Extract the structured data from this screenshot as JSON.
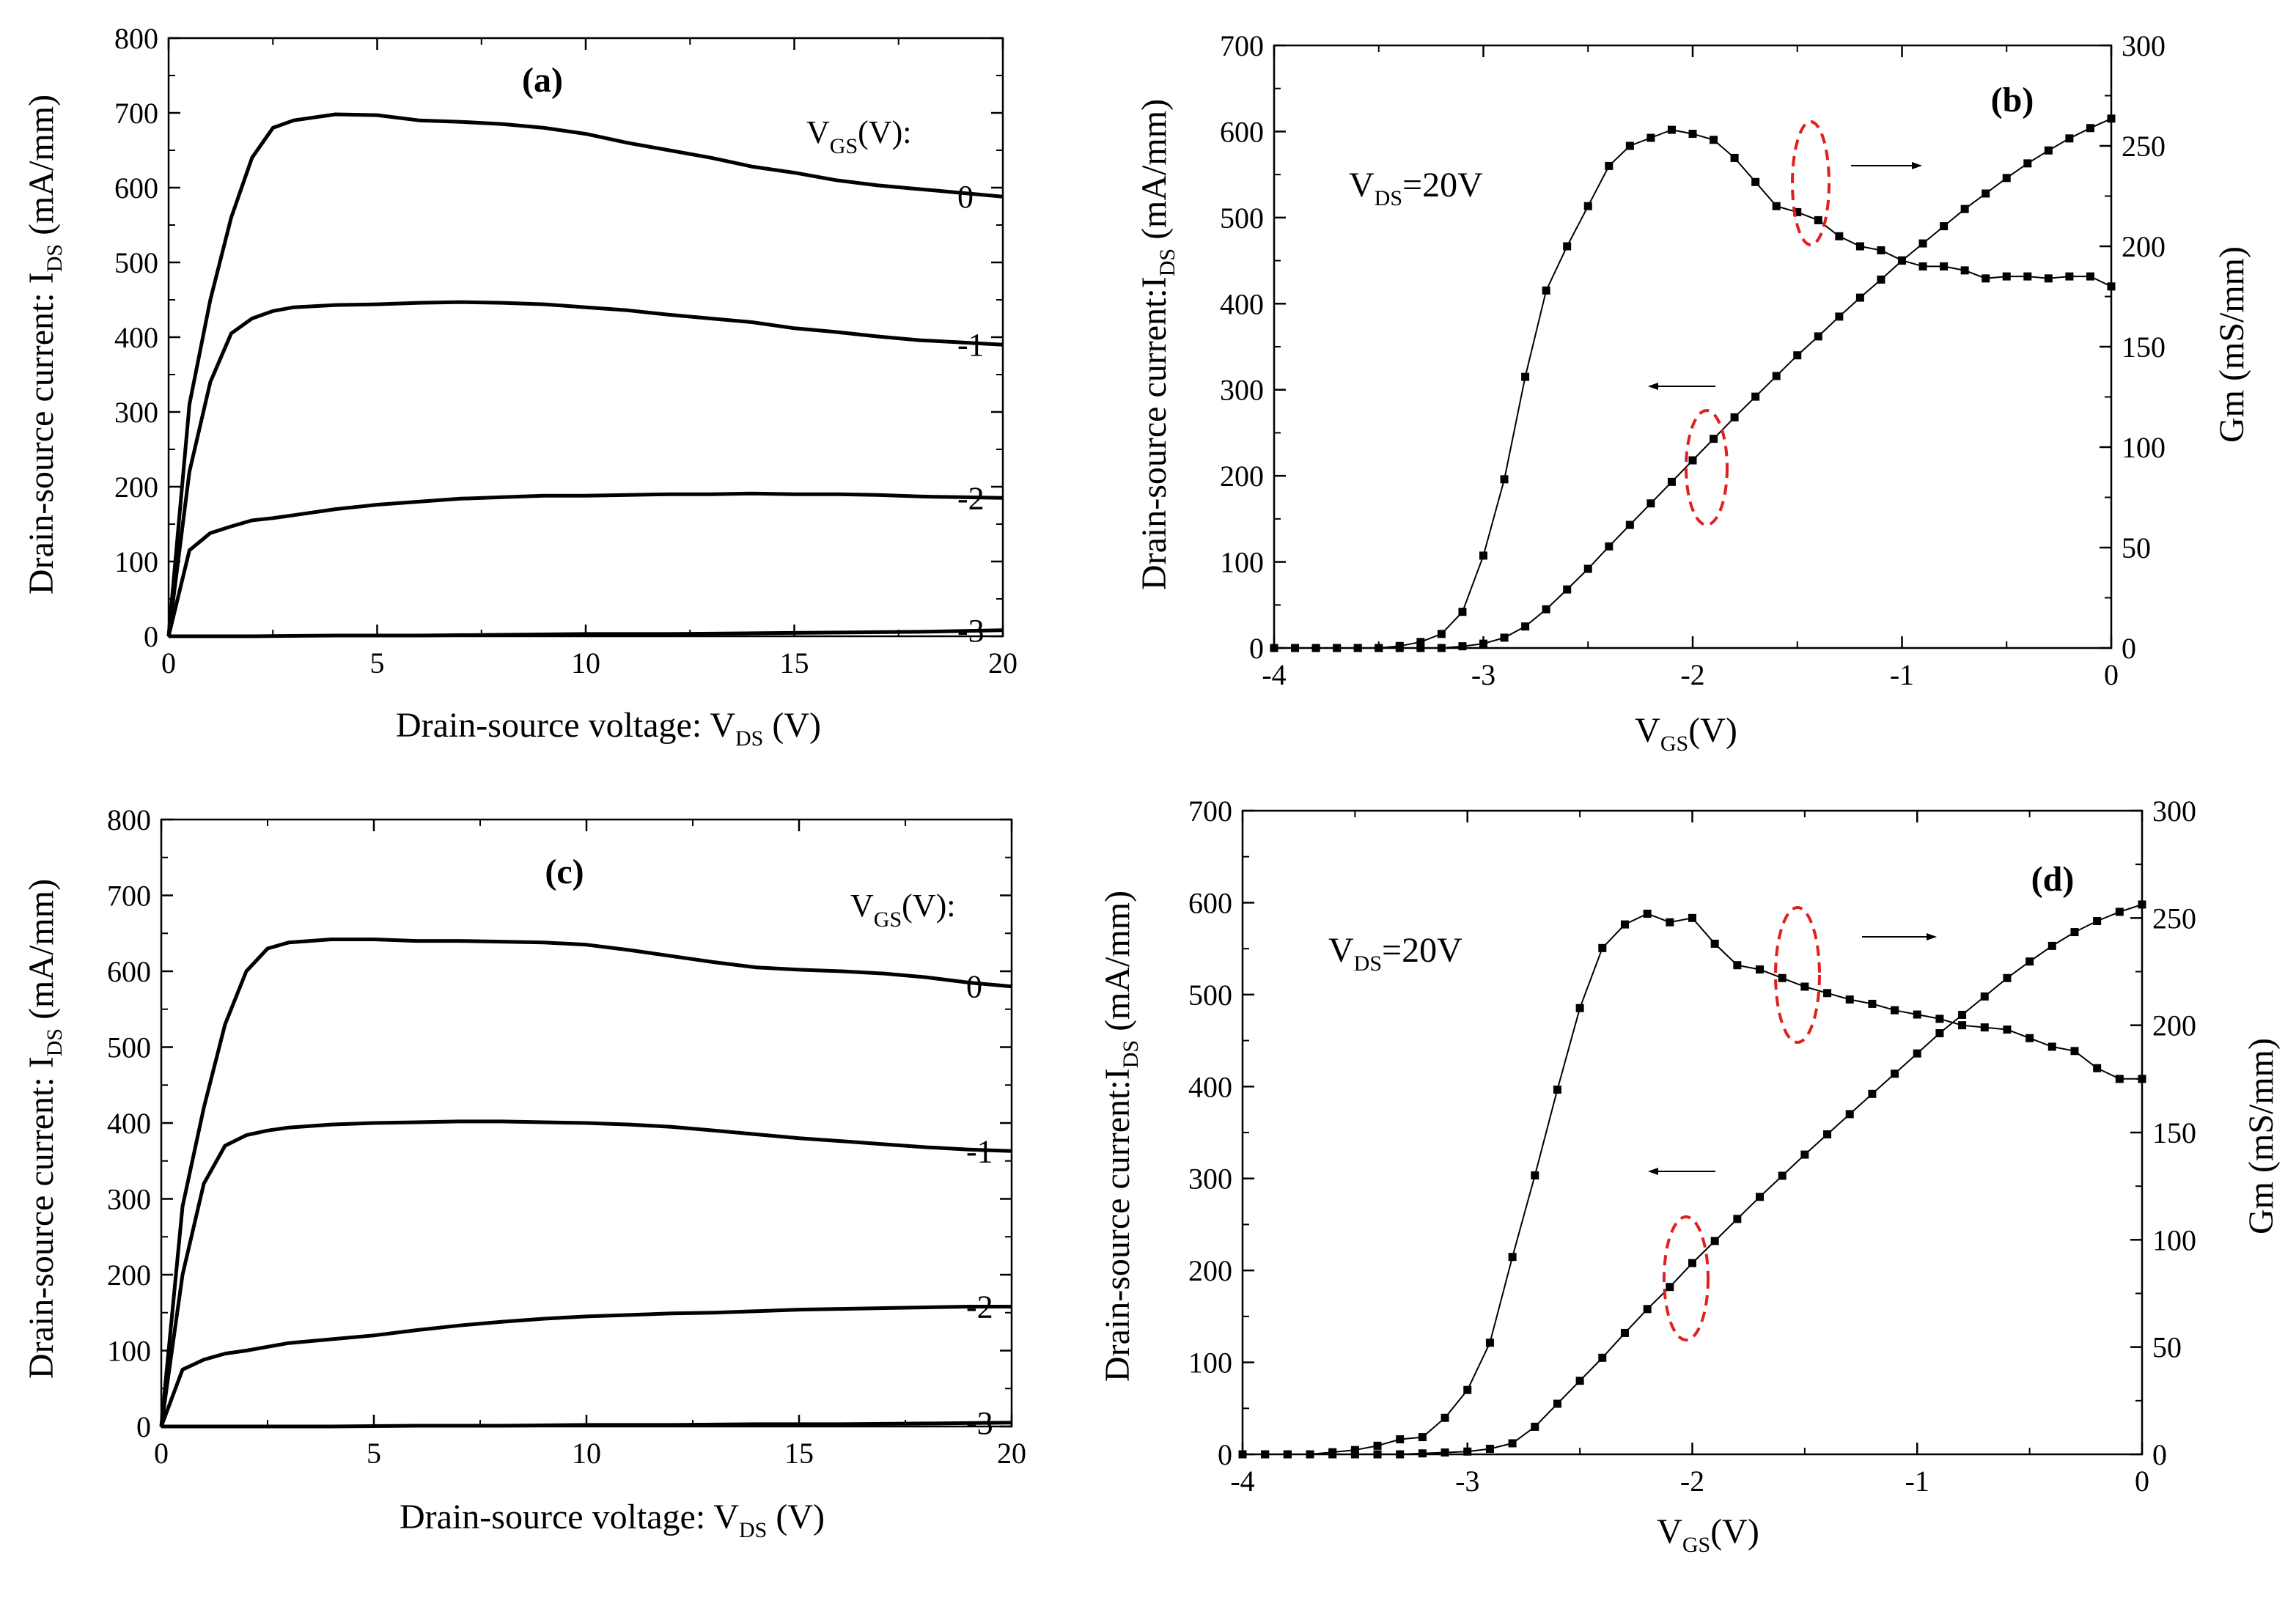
{
  "panels": [
    {
      "id": "a",
      "panel_label": "(a)",
      "ylabel_prefix": "Drain-source current: I",
      "ylabel_sub": "DS",
      "ylabel_suffix": " (mA/mm)",
      "xlabel_prefix": "Drain-source voltage: V",
      "xlabel_sub": "DS",
      "xlabel_suffix": " (V)",
      "legend_head_main": "V",
      "legend_head_sub": "GS",
      "legend_head_tail": "(V):"
    },
    {
      "id": "b",
      "panel_label": "(b)",
      "ylabel_prefix": "Drain-source current:I",
      "ylabel_sub": "DS",
      "ylabel_suffix": " (mA/mm)",
      "y2label": "Gm (mS/mm)",
      "xlabel_main": "V",
      "xlabel_sub": "GS",
      "xlabel_tail": "(V)",
      "annotation_main": "V",
      "annotation_sub": "DS",
      "annotation_tail": "=20V"
    },
    {
      "id": "c",
      "panel_label": "(c)",
      "ylabel_prefix": "Drain-source current: I",
      "ylabel_sub": "DS",
      "ylabel_suffix": " (mA/mm)",
      "xlabel_prefix": "Drain-source voltage: V",
      "xlabel_sub": "DS",
      "xlabel_suffix": " (V)",
      "legend_head_main": "V",
      "legend_head_sub": "GS",
      "legend_head_tail": "(V):"
    },
    {
      "id": "d",
      "panel_label": "(d)",
      "ylabel_prefix": "Drain-source current:I",
      "ylabel_sub": "DS",
      "ylabel_suffix": " (mA/mm)",
      "y2label": "Gm (mS/mm)",
      "xlabel_main": "V",
      "xlabel_sub": "GS",
      "xlabel_tail": "(V)",
      "annotation_main": "V",
      "annotation_sub": "DS",
      "annotation_tail": "=20V"
    }
  ],
  "chart_data": [
    {
      "panel": "a",
      "type": "line",
      "xlim": [
        0,
        20
      ],
      "ylim": [
        0,
        800
      ],
      "x_ticks": [
        0,
        5,
        10,
        15,
        20
      ],
      "y_ticks": [
        0,
        100,
        200,
        300,
        400,
        500,
        600,
        700,
        800
      ],
      "grid": false,
      "color": "#000000",
      "series": [
        {
          "name": "0",
          "x": [
            0,
            0.5,
            1,
            1.5,
            2,
            2.5,
            3,
            4,
            5,
            6,
            7,
            8,
            9,
            10,
            11,
            12,
            13,
            14,
            15,
            16,
            17,
            18,
            19,
            20
          ],
          "y": [
            0,
            310,
            450,
            560,
            640,
            680,
            690,
            698,
            697,
            690,
            688,
            685,
            680,
            672,
            660,
            650,
            640,
            628,
            620,
            610,
            603,
            598,
            593,
            588
          ]
        },
        {
          "name": "-1",
          "x": [
            0,
            0.5,
            1,
            1.5,
            2,
            2.5,
            3,
            4,
            5,
            6,
            7,
            8,
            9,
            10,
            11,
            12,
            13,
            14,
            15,
            16,
            17,
            18,
            19,
            20
          ],
          "y": [
            0,
            220,
            340,
            405,
            425,
            435,
            440,
            443,
            444,
            446,
            447,
            446,
            444,
            440,
            436,
            430,
            425,
            420,
            412,
            407,
            401,
            396,
            393,
            390
          ]
        },
        {
          "name": "-2",
          "x": [
            0,
            0.5,
            1,
            1.5,
            2,
            2.5,
            3,
            4,
            5,
            6,
            7,
            8,
            9,
            10,
            11,
            12,
            13,
            14,
            15,
            16,
            17,
            18,
            19,
            20
          ],
          "y": [
            0,
            115,
            138,
            147,
            155,
            158,
            162,
            170,
            176,
            180,
            184,
            186,
            188,
            188,
            189,
            190,
            190,
            191,
            190,
            190,
            189,
            187,
            186,
            185
          ]
        },
        {
          "name": "-3",
          "x": [
            0,
            1,
            2,
            4,
            6,
            8,
            10,
            12,
            14,
            16,
            18,
            20
          ],
          "y": [
            0,
            0,
            0,
            1,
            1,
            2,
            3,
            3,
            4,
            5,
            6,
            8
          ]
        }
      ]
    },
    {
      "panel": "b",
      "type": "line",
      "xlim": [
        -4,
        0
      ],
      "ylim": [
        0,
        700
      ],
      "y2lim": [
        0,
        300
      ],
      "x_ticks": [
        -4,
        -3,
        -2,
        -1,
        0
      ],
      "y_ticks": [
        0,
        100,
        200,
        300,
        400,
        500,
        600,
        700
      ],
      "y2_ticks": [
        0,
        50,
        100,
        150,
        200,
        250,
        300
      ],
      "grid": false,
      "series": [
        {
          "axis": "left",
          "x": [
            -4.0,
            -3.9,
            -3.8,
            -3.7,
            -3.6,
            -3.5,
            -3.4,
            -3.3,
            -3.2,
            -3.1,
            -3.0,
            -2.9,
            -2.8,
            -2.7,
            -2.6,
            -2.5,
            -2.4,
            -2.3,
            -2.2,
            -2.1,
            -2.0,
            -1.9,
            -1.8,
            -1.7,
            -1.6,
            -1.5,
            -1.4,
            -1.3,
            -1.2,
            -1.1,
            -1.0,
            -0.9,
            -0.8,
            -0.7,
            -0.6,
            -0.5,
            -0.4,
            -0.3,
            -0.2,
            -0.1,
            0.0
          ],
          "y": [
            0,
            0,
            0,
            0,
            0,
            0,
            0,
            0,
            0,
            2,
            5,
            12,
            25,
            45,
            68,
            92,
            118,
            143,
            168,
            193,
            218,
            243,
            268,
            292,
            316,
            340,
            362,
            385,
            407,
            428,
            450,
            470,
            490,
            510,
            528,
            546,
            563,
            578,
            592,
            604,
            615
          ]
        },
        {
          "axis": "right",
          "x": [
            -4.0,
            -3.9,
            -3.8,
            -3.7,
            -3.6,
            -3.5,
            -3.4,
            -3.3,
            -3.2,
            -3.1,
            -3.0,
            -2.9,
            -2.8,
            -2.7,
            -2.6,
            -2.5,
            -2.4,
            -2.3,
            -2.2,
            -2.1,
            -2.0,
            -1.9,
            -1.8,
            -1.7,
            -1.6,
            -1.5,
            -1.4,
            -1.3,
            -1.2,
            -1.1,
            -1.0,
            -0.9,
            -0.8,
            -0.7,
            -0.6,
            -0.5,
            -0.4,
            -0.3,
            -0.2,
            -0.1,
            0.0
          ],
          "y": [
            0,
            0,
            0,
            0,
            0,
            0,
            1,
            3,
            7,
            18,
            46,
            84,
            135,
            178,
            200,
            220,
            240,
            250,
            254,
            258,
            256,
            253,
            244,
            232,
            220,
            217,
            213,
            205,
            200,
            198,
            193,
            190,
            190,
            188,
            184,
            185,
            185,
            184,
            185,
            185,
            180
          ]
        }
      ]
    },
    {
      "panel": "c",
      "type": "line",
      "xlim": [
        0,
        20
      ],
      "ylim": [
        0,
        800
      ],
      "x_ticks": [
        0,
        5,
        10,
        15,
        20
      ],
      "y_ticks": [
        0,
        100,
        200,
        300,
        400,
        500,
        600,
        700,
        800
      ],
      "grid": false,
      "color": "#000000",
      "series": [
        {
          "name": "0",
          "x": [
            0,
            0.5,
            1,
            1.5,
            2,
            2.5,
            3,
            4,
            5,
            6,
            7,
            8,
            9,
            10,
            11,
            12,
            13,
            14,
            15,
            16,
            17,
            18,
            19,
            20
          ],
          "y": [
            0,
            290,
            420,
            530,
            600,
            630,
            638,
            642,
            642,
            640,
            640,
            639,
            638,
            635,
            628,
            620,
            612,
            605,
            602,
            600,
            597,
            592,
            585,
            580
          ]
        },
        {
          "name": "-1",
          "x": [
            0,
            0.5,
            1,
            1.5,
            2,
            2.5,
            3,
            4,
            5,
            6,
            7,
            8,
            9,
            10,
            11,
            12,
            13,
            14,
            15,
            16,
            17,
            18,
            19,
            20
          ],
          "y": [
            0,
            200,
            320,
            370,
            384,
            390,
            394,
            398,
            400,
            401,
            402,
            402,
            401,
            400,
            398,
            395,
            390,
            385,
            380,
            376,
            372,
            368,
            365,
            363
          ]
        },
        {
          "name": "-2",
          "x": [
            0,
            0.5,
            1,
            1.5,
            2,
            2.5,
            3,
            4,
            5,
            6,
            7,
            8,
            9,
            10,
            11,
            12,
            13,
            14,
            15,
            16,
            17,
            18,
            19,
            20
          ],
          "y": [
            0,
            75,
            88,
            96,
            100,
            105,
            110,
            115,
            120,
            127,
            133,
            138,
            142,
            145,
            147,
            149,
            150,
            152,
            154,
            155,
            156,
            157,
            158,
            158
          ]
        },
        {
          "name": "-3",
          "x": [
            0,
            1,
            2,
            4,
            6,
            8,
            10,
            12,
            14,
            16,
            18,
            20
          ],
          "y": [
            0,
            0,
            0,
            0,
            1,
            1,
            2,
            2,
            3,
            3,
            4,
            5
          ]
        }
      ]
    },
    {
      "panel": "d",
      "type": "line",
      "xlim": [
        -4,
        0
      ],
      "ylim": [
        0,
        700
      ],
      "y2lim": [
        0,
        300
      ],
      "x_ticks": [
        -4,
        -3,
        -2,
        -1,
        0
      ],
      "y_ticks": [
        0,
        100,
        200,
        300,
        400,
        500,
        600,
        700
      ],
      "y2_ticks": [
        0,
        50,
        100,
        150,
        200,
        250,
        300
      ],
      "grid": false,
      "series": [
        {
          "axis": "left",
          "x": [
            -4.0,
            -3.9,
            -3.8,
            -3.7,
            -3.6,
            -3.5,
            -3.4,
            -3.3,
            -3.2,
            -3.1,
            -3.0,
            -2.9,
            -2.8,
            -2.7,
            -2.6,
            -2.5,
            -2.4,
            -2.3,
            -2.2,
            -2.1,
            -2.0,
            -1.9,
            -1.8,
            -1.7,
            -1.6,
            -1.5,
            -1.4,
            -1.3,
            -1.2,
            -1.1,
            -1.0,
            -0.9,
            -0.8,
            -0.7,
            -0.6,
            -0.5,
            -0.4,
            -0.3,
            -0.2,
            -0.1,
            0.0
          ],
          "y": [
            0,
            0,
            0,
            0,
            0,
            0,
            0,
            0,
            1,
            2,
            3,
            6,
            12,
            30,
            55,
            80,
            105,
            132,
            158,
            182,
            208,
            232,
            256,
            280,
            303,
            326,
            348,
            370,
            392,
            414,
            436,
            458,
            478,
            498,
            518,
            536,
            553,
            568,
            580,
            590,
            598
          ]
        },
        {
          "axis": "right",
          "x": [
            -4.0,
            -3.9,
            -3.8,
            -3.7,
            -3.6,
            -3.5,
            -3.4,
            -3.3,
            -3.2,
            -3.1,
            -3.0,
            -2.9,
            -2.8,
            -2.7,
            -2.6,
            -2.5,
            -2.4,
            -2.3,
            -2.2,
            -2.1,
            -2.0,
            -1.9,
            -1.8,
            -1.7,
            -1.6,
            -1.5,
            -1.4,
            -1.3,
            -1.2,
            -1.1,
            -1.0,
            -0.9,
            -0.8,
            -0.7,
            -0.6,
            -0.5,
            -0.4,
            -0.3,
            -0.2,
            -0.1,
            0.0
          ],
          "y": [
            0,
            0,
            0,
            0,
            1,
            2,
            4,
            7,
            8,
            17,
            30,
            52,
            92,
            130,
            170,
            208,
            236,
            247,
            252,
            248,
            250,
            238,
            228,
            226,
            222,
            218,
            215,
            212,
            210,
            207,
            205,
            203,
            200,
            199,
            198,
            194,
            190,
            188,
            180,
            175,
            175
          ]
        }
      ]
    }
  ]
}
